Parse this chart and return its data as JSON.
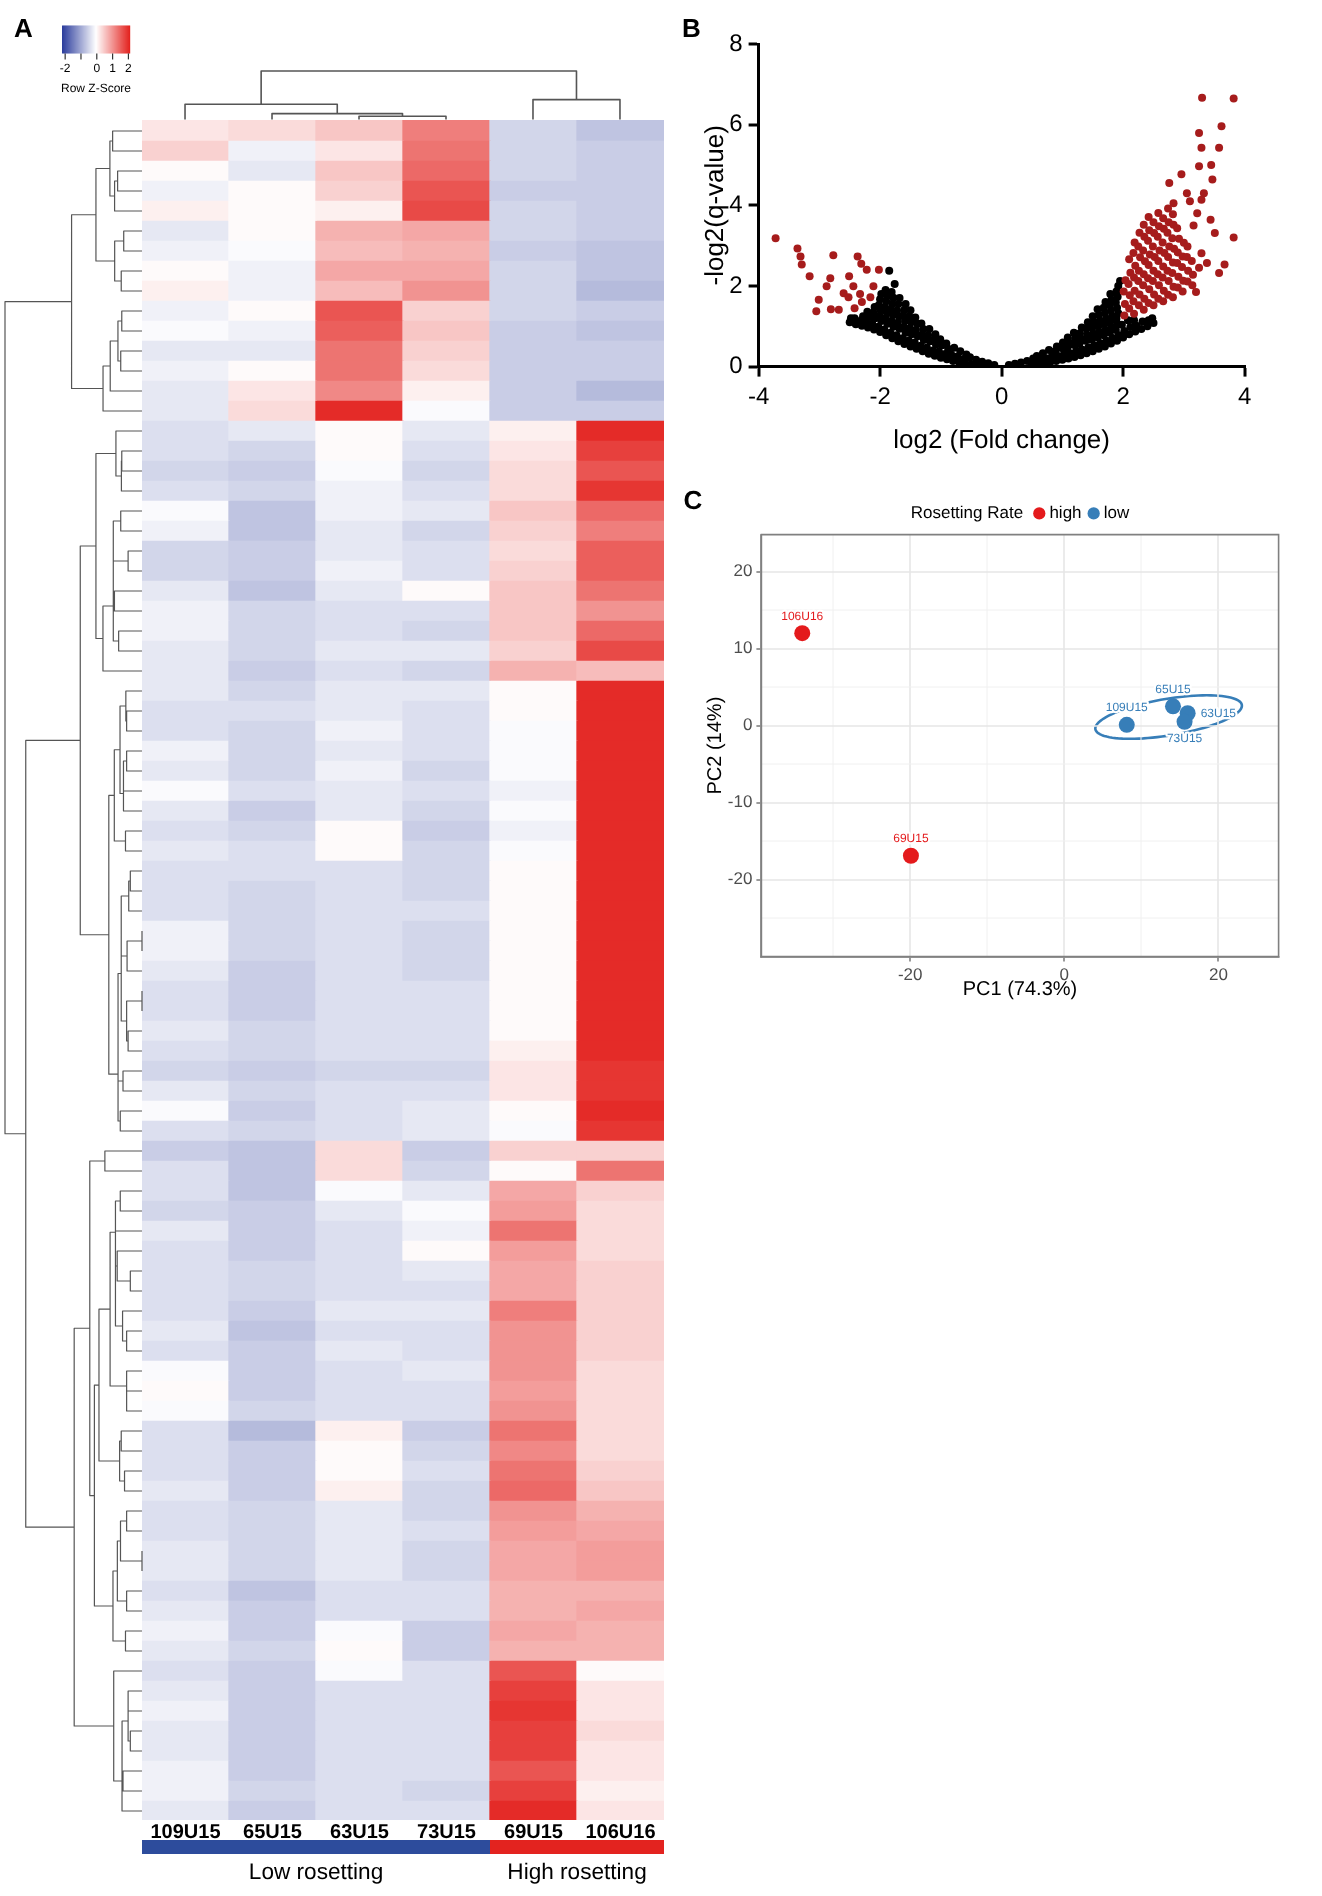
{
  "chart_data": [
    {
      "type": "heatmap",
      "title": "A",
      "categories": [
        "109U15",
        "65U15",
        "63U15",
        "73U15",
        "69U15",
        "106U16"
      ],
      "y_categories": [
        null,
        null,
        null,
        null,
        null,
        null,
        null,
        null,
        null,
        null,
        null,
        null,
        null,
        null,
        null,
        null,
        null,
        null,
        null,
        null,
        null,
        null,
        null,
        null,
        null,
        null,
        null,
        null,
        null,
        null,
        null,
        null,
        null,
        null,
        null,
        null,
        null,
        null,
        null,
        null,
        null,
        null,
        null,
        null,
        null,
        null,
        null,
        null,
        null,
        null,
        null,
        null,
        null,
        null,
        null,
        null,
        null,
        null,
        null,
        null,
        null,
        null,
        null,
        null,
        null,
        null,
        null,
        null,
        null,
        null,
        null,
        null,
        null,
        null,
        null,
        null,
        null,
        null,
        null,
        null,
        null,
        null,
        null,
        null,
        null
      ],
      "cells": [
        [
          0.2,
          0.3,
          0.5,
          1.2,
          -0.5,
          -0.7
        ],
        [
          0.4,
          -0.2,
          0.2,
          1.3,
          -0.5,
          -0.6
        ],
        [
          0.0,
          -0.3,
          0.5,
          1.4,
          -0.5,
          -0.6
        ],
        [
          -0.2,
          0.0,
          0.4,
          1.6,
          -0.6,
          -0.6
        ],
        [
          0.1,
          0.0,
          0.1,
          1.7,
          -0.5,
          -0.6
        ],
        [
          -0.3,
          0.0,
          0.7,
          0.8,
          -0.5,
          -0.6
        ],
        [
          -0.2,
          -0.1,
          0.6,
          0.7,
          -0.6,
          -0.7
        ],
        [
          0.0,
          -0.2,
          0.8,
          0.8,
          -0.5,
          -0.7
        ],
        [
          0.1,
          -0.2,
          0.6,
          1.0,
          -0.5,
          -0.8
        ],
        [
          -0.2,
          0.0,
          1.6,
          0.4,
          -0.5,
          -0.6
        ],
        [
          -0.1,
          -0.2,
          1.5,
          0.5,
          -0.6,
          -0.7
        ],
        [
          -0.3,
          -0.3,
          1.3,
          0.4,
          -0.6,
          -0.6
        ],
        [
          -0.2,
          0.0,
          1.3,
          0.3,
          -0.6,
          -0.6
        ],
        [
          -0.3,
          0.2,
          1.1,
          0.1,
          -0.6,
          -0.8
        ],
        [
          -0.3,
          0.3,
          2.0,
          -0.1,
          -0.6,
          -0.6
        ],
        [
          -0.4,
          -0.3,
          0.0,
          -0.3,
          0.1,
          2.0
        ],
        [
          -0.4,
          -0.5,
          0.0,
          -0.4,
          0.2,
          1.8
        ],
        [
          -0.5,
          -0.6,
          -0.1,
          -0.5,
          0.3,
          1.6
        ],
        [
          -0.4,
          -0.5,
          -0.2,
          -0.4,
          0.3,
          1.9
        ],
        [
          -0.1,
          -0.7,
          -0.2,
          -0.3,
          0.5,
          1.4
        ],
        [
          -0.2,
          -0.7,
          -0.3,
          -0.5,
          0.4,
          1.2
        ],
        [
          -0.5,
          -0.6,
          -0.3,
          -0.4,
          0.3,
          1.5
        ],
        [
          -0.5,
          -0.6,
          -0.2,
          -0.4,
          0.4,
          1.5
        ],
        [
          -0.3,
          -0.7,
          -0.3,
          0.0,
          0.5,
          1.3
        ],
        [
          -0.2,
          -0.5,
          -0.4,
          -0.4,
          0.5,
          1.0
        ],
        [
          -0.2,
          -0.5,
          -0.4,
          -0.5,
          0.5,
          1.4
        ],
        [
          -0.3,
          -0.5,
          -0.3,
          -0.3,
          0.4,
          1.7
        ],
        [
          -0.3,
          -0.6,
          -0.4,
          -0.5,
          0.7,
          0.6
        ],
        [
          -0.3,
          -0.5,
          -0.3,
          -0.3,
          0.0,
          2.0
        ],
        [
          -0.4,
          -0.4,
          -0.3,
          -0.4,
          0.0,
          2.0
        ],
        [
          -0.4,
          -0.5,
          -0.2,
          -0.4,
          -0.1,
          2.0
        ],
        [
          -0.2,
          -0.5,
          -0.3,
          -0.4,
          -0.1,
          2.0
        ],
        [
          -0.3,
          -0.5,
          -0.2,
          -0.5,
          -0.1,
          2.0
        ],
        [
          -0.1,
          -0.4,
          -0.3,
          -0.4,
          -0.2,
          2.0
        ],
        [
          -0.3,
          -0.6,
          -0.3,
          -0.5,
          -0.1,
          2.0
        ],
        [
          -0.4,
          -0.5,
          0.0,
          -0.6,
          -0.2,
          2.0
        ],
        [
          -0.3,
          -0.4,
          0.0,
          -0.5,
          -0.1,
          2.0
        ],
        [
          -0.4,
          -0.4,
          -0.4,
          -0.5,
          0.0,
          2.0
        ],
        [
          -0.4,
          -0.5,
          -0.4,
          -0.5,
          0.0,
          2.0
        ],
        [
          -0.4,
          -0.5,
          -0.4,
          -0.4,
          0.0,
          2.0
        ],
        [
          -0.2,
          -0.5,
          -0.4,
          -0.5,
          0.0,
          2.0
        ],
        [
          -0.2,
          -0.5,
          -0.4,
          -0.5,
          0.0,
          2.0
        ],
        [
          -0.3,
          -0.6,
          -0.4,
          -0.5,
          0.0,
          2.0
        ],
        [
          -0.4,
          -0.6,
          -0.4,
          -0.4,
          0.0,
          2.0
        ],
        [
          -0.4,
          -0.6,
          -0.4,
          -0.4,
          0.0,
          2.0
        ],
        [
          -0.3,
          -0.5,
          -0.4,
          -0.4,
          0.0,
          2.0
        ],
        [
          -0.4,
          -0.5,
          -0.4,
          -0.4,
          0.1,
          2.0
        ],
        [
          -0.5,
          -0.6,
          -0.5,
          -0.5,
          0.2,
          1.9
        ],
        [
          -0.3,
          -0.5,
          -0.4,
          -0.4,
          0.2,
          1.9
        ],
        [
          -0.1,
          -0.6,
          -0.4,
          -0.3,
          0.0,
          2.0
        ],
        [
          -0.4,
          -0.5,
          -0.4,
          -0.3,
          -0.1,
          1.9
        ],
        [
          -0.6,
          -0.7,
          0.3,
          -0.6,
          0.4,
          0.4
        ],
        [
          -0.4,
          -0.7,
          0.3,
          -0.5,
          0.0,
          1.3
        ],
        [
          -0.4,
          -0.7,
          -0.1,
          -0.3,
          0.8,
          0.4
        ],
        [
          -0.5,
          -0.6,
          -0.3,
          -0.1,
          0.9,
          0.3
        ],
        [
          -0.3,
          -0.6,
          -0.4,
          -0.2,
          1.3,
          0.3
        ],
        [
          -0.4,
          -0.6,
          -0.4,
          0.0,
          0.9,
          0.3
        ],
        [
          -0.4,
          -0.5,
          -0.4,
          -0.3,
          0.8,
          0.4
        ],
        [
          -0.4,
          -0.5,
          -0.4,
          -0.4,
          0.8,
          0.4
        ],
        [
          -0.4,
          -0.6,
          -0.3,
          -0.3,
          1.2,
          0.4
        ],
        [
          -0.3,
          -0.7,
          -0.4,
          -0.4,
          1.0,
          0.4
        ],
        [
          -0.4,
          -0.6,
          -0.3,
          -0.4,
          1.0,
          0.4
        ],
        [
          -0.1,
          -0.6,
          -0.4,
          -0.3,
          1.0,
          0.3
        ],
        [
          0.0,
          -0.6,
          -0.4,
          -0.4,
          0.9,
          0.3
        ],
        [
          -0.1,
          -0.5,
          -0.4,
          -0.4,
          1.0,
          0.3
        ],
        [
          -0.4,
          -0.8,
          0.1,
          -0.6,
          1.3,
          0.3
        ],
        [
          -0.4,
          -0.6,
          0.0,
          -0.5,
          1.1,
          0.3
        ],
        [
          -0.4,
          -0.6,
          0.0,
          -0.4,
          1.3,
          0.4
        ],
        [
          -0.3,
          -0.6,
          0.1,
          -0.5,
          1.4,
          0.5
        ],
        [
          -0.4,
          -0.5,
          -0.3,
          -0.5,
          1.0,
          0.7
        ],
        [
          -0.4,
          -0.5,
          -0.3,
          -0.4,
          0.9,
          0.8
        ],
        [
          -0.3,
          -0.5,
          -0.3,
          -0.5,
          0.8,
          0.9
        ],
        [
          -0.3,
          -0.5,
          -0.3,
          -0.5,
          0.8,
          0.9
        ],
        [
          -0.4,
          -0.7,
          -0.4,
          -0.4,
          0.7,
          0.7
        ],
        [
          -0.3,
          -0.6,
          -0.4,
          -0.4,
          0.7,
          0.8
        ],
        [
          -0.2,
          -0.6,
          -0.1,
          -0.6,
          0.8,
          0.7
        ],
        [
          -0.3,
          -0.5,
          0.0,
          -0.6,
          0.7,
          0.7
        ],
        [
          -0.4,
          -0.6,
          -0.1,
          -0.4,
          1.6,
          0.0
        ],
        [
          -0.3,
          -0.6,
          -0.4,
          -0.4,
          1.8,
          0.2
        ],
        [
          -0.2,
          -0.6,
          -0.4,
          -0.4,
          1.9,
          0.2
        ],
        [
          -0.3,
          -0.6,
          -0.4,
          -0.4,
          1.8,
          0.3
        ],
        [
          -0.3,
          -0.6,
          -0.4,
          -0.4,
          1.8,
          0.2
        ],
        [
          -0.2,
          -0.6,
          -0.4,
          -0.4,
          1.6,
          0.2
        ],
        [
          -0.2,
          -0.5,
          -0.4,
          -0.5,
          1.8,
          0.1
        ],
        [
          -0.3,
          -0.6,
          -0.4,
          -0.4,
          2.0,
          0.2
        ]
      ],
      "clim": [
        -2.2,
        2.1
      ],
      "cticks": [
        -2,
        {
          "value": -1,
          "label": null
        },
        0,
        1,
        2
      ],
      "clabel": "Row Z-Score",
      "annotations": [
        "Low rosetting",
        "High rosetting"
      ]
    },
    {
      "type": "scatter",
      "title": "B",
      "xlabel": "log2 (Fold change)",
      "ylabel": "-log2(q-value)",
      "marker": "circle",
      "series": [
        {
          "color": "#000000",
          "x": [
            -0.12,
            -0.22,
            -0.32,
            -0.4,
            -0.42,
            -0.5,
            -0.52,
            -0.6,
            -0.63,
            -0.58,
            -0.7,
            -0.73,
            -0.68,
            -0.8,
            -0.83,
            -0.78,
            -0.9,
            -0.93,
            -0.88,
            -0.91,
            -1,
            -1.03,
            -0.98,
            -1.01,
            -1.1,
            -1.13,
            -1.08,
            -1.11,
            -1.09,
            -1.2,
            -1.23,
            -1.18,
            -1.21,
            -1.19,
            -1.3,
            -1.33,
            -1.28,
            -1.31,
            -1.29,
            -1.32,
            -1.4,
            -1.43,
            -1.38,
            -1.41,
            -1.39,
            -1.42,
            -1.5,
            -1.53,
            -1.48,
            -1.51,
            -1.49,
            -1.52,
            -1.5,
            -1.6,
            -1.63,
            -1.58,
            -1.61,
            -1.59,
            -1.62,
            -1.6,
            -1.58,
            -1.7,
            -1.73,
            -1.68,
            -1.71,
            -1.69,
            -1.72,
            -1.7,
            -1.68,
            -1.8,
            -1.83,
            -1.78,
            -1.81,
            -1.79,
            -1.82,
            -1.8,
            -1.78,
            -1.81,
            -1.9,
            -1.93,
            -1.88,
            -1.91,
            -1.89,
            -1.92,
            -1.9,
            -1.88,
            -1.91,
            -2,
            -2.03,
            -1.98,
            -2.01,
            -1.99,
            -2.02,
            -2,
            -1.98,
            -2.1,
            -2.13,
            -2.08,
            -2.11,
            -2.09,
            -2.2,
            -2.23,
            -2.18,
            -2.21,
            -2.3,
            -2.33,
            -2.28,
            -2.4,
            -2.42,
            -2.5,
            -2.48,
            -1.76,
            -1.85
          ],
          "values": [
            0.04,
            0.08,
            0.12,
            0.04,
            0.17,
            0.06,
            0.23,
            0.08,
            0.19,
            0.3,
            0.11,
            0.25,
            0.38,
            0.14,
            0.3,
            0.47,
            0.18,
            0.31,
            0.44,
            0.57,
            0.22,
            0.37,
            0.53,
            0.68,
            0.27,
            0.4,
            0.54,
            0.67,
            0.8,
            0.32,
            0.47,
            0.63,
            0.78,
            0.93,
            0.38,
            0.52,
            0.66,
            0.79,
            0.93,
            1.07,
            0.44,
            0.6,
            0.75,
            0.91,
            1.06,
            1.22,
            0.5,
            0.65,
            0.8,
            0.95,
            1.1,
            1.25,
            1.4,
            0.56,
            0.7,
            0.84,
            0.98,
            1.13,
            1.27,
            1.41,
            1.55,
            0.63,
            0.78,
            0.94,
            1.09,
            1.24,
            1.39,
            1.55,
            1.7,
            0.7,
            0.84,
            0.99,
            1.13,
            1.28,
            1.42,
            1.56,
            1.71,
            1.85,
            0.78,
            0.92,
            1.06,
            1.2,
            1.34,
            1.48,
            1.62,
            1.76,
            1.9,
            0.86,
            0.99,
            1.13,
            1.26,
            1.4,
            1.53,
            1.67,
            1.8,
            0.92,
            1.06,
            1.2,
            1.34,
            1.48,
            0.97,
            1.1,
            1.23,
            1.36,
            1.01,
            1.13,
            1.25,
            1.05,
            1.2,
            1.1,
            1.2,
            2.05,
            2.38
          ]
        },
        {
          "color": "#000000",
          "x": [
            0.12,
            0.22,
            0.32,
            0.42,
            0.5,
            0.52,
            0.6,
            0.63,
            0.58,
            0.7,
            0.73,
            0.68,
            0.8,
            0.83,
            0.78,
            0.9,
            0.93,
            0.88,
            0.91,
            1,
            1.03,
            0.98,
            1.01,
            1.1,
            1.13,
            1.08,
            1.11,
            1.09,
            1.2,
            1.23,
            1.18,
            1.21,
            1.19,
            1.3,
            1.33,
            1.28,
            1.31,
            1.29,
            1.32,
            1.4,
            1.43,
            1.38,
            1.41,
            1.39,
            1.42,
            1.5,
            1.53,
            1.48,
            1.51,
            1.49,
            1.52,
            1.5,
            1.6,
            1.63,
            1.58,
            1.61,
            1.59,
            1.62,
            1.6,
            1.58,
            1.7,
            1.73,
            1.68,
            1.71,
            1.69,
            1.72,
            1.7,
            1.68,
            1.71,
            1.8,
            1.83,
            1.78,
            1.81,
            1.79,
            1.82,
            1.8,
            1.78,
            1.81,
            1.79,
            1.9,
            1.93,
            1.88,
            1.91,
            1.89,
            1.92,
            1.9,
            1.88,
            1.91,
            1.89,
            1.92,
            2,
            2.02,
            1.98,
            1.95,
            2.1,
            2.12,
            2.08,
            2.2,
            2.22,
            2.18,
            2.3,
            2.32,
            2.4,
            2.42,
            2.5,
            2.48
          ],
          "values": [
            0.04,
            0.07,
            0.1,
            0.14,
            0.05,
            0.2,
            0.07,
            0.17,
            0.26,
            0.09,
            0.21,
            0.33,
            0.11,
            0.26,
            0.41,
            0.14,
            0.26,
            0.38,
            0.5,
            0.17,
            0.31,
            0.46,
            0.6,
            0.2,
            0.33,
            0.46,
            0.59,
            0.72,
            0.24,
            0.39,
            0.54,
            0.69,
            0.84,
            0.28,
            0.42,
            0.56,
            0.69,
            0.83,
            0.97,
            0.33,
            0.48,
            0.64,
            0.79,
            0.95,
            1.1,
            0.38,
            0.53,
            0.67,
            0.82,
            0.96,
            1.11,
            1.25,
            0.44,
            0.58,
            0.72,
            0.86,
            1,
            1.14,
            1.28,
            1.42,
            0.5,
            0.64,
            0.78,
            0.91,
            1.05,
            1.19,
            1.33,
            1.46,
            1.6,
            0.57,
            0.71,
            0.84,
            0.98,
            1.12,
            1.25,
            1.39,
            1.53,
            1.66,
            1.8,
            0.64,
            0.78,
            0.91,
            1.05,
            1.18,
            1.32,
            1.46,
            1.59,
            1.73,
            1.86,
            2,
            0.72,
            0.88,
            1.04,
            2.12,
            0.8,
            0.98,
            1.15,
            0.87,
            1.01,
            1.15,
            0.93,
            1.12,
            1,
            1.15,
            1.08,
            1.2
          ]
        },
        {
          "color": "#a61c1c",
          "x": [
            -3.72,
            -3.36,
            -3.31,
            -3.29,
            -3.16,
            -3.01,
            -3.05,
            -2.77,
            -2.82,
            -2.88,
            -2.81,
            -2.68,
            -2.6,
            -2.51,
            -2.37,
            -2.31,
            -2.44,
            -2.33,
            -2.52,
            -2.22,
            -2.11,
            -2.16,
            -2.3,
            -2.42,
            -2.02,
            3.3,
            3.82,
            3.62,
            3.25,
            3.29,
            3.58,
            3.45,
            3.25,
            2.96,
            2.76,
            3.47,
            3.33,
            3.05,
            3.82,
            3.51,
            3.67,
            3.58,
            3.38,
            3.29,
            3.44,
            3.29,
            2.83,
            3.1,
            3.22,
            3.16,
            3.25,
            3.2
          ],
          "values": [
            3.18,
            2.93,
            2.73,
            2.53,
            2.24,
            1.66,
            1.37,
            2.76,
            2.19,
            1.99,
            1.42,
            1.41,
            1.82,
            2.24,
            2.73,
            2.55,
            1.99,
            1.8,
            1.72,
            2.4,
            1.99,
            1.72,
            1.6,
            1.45,
            2.4,
            6.67,
            6.65,
            5.96,
            5.79,
            5.43,
            5.43,
            5,
            4.97,
            4.77,
            4.55,
            4.64,
            4.3,
            4.3,
            3.2,
            3.31,
            2.53,
            2.32,
            2.57,
            2.81,
            3.64,
            4.14,
            4.05,
            4.1,
            3.8,
            3.5,
            2.45,
            1.85
          ]
        },
        {
          "color": "#a61c1c",
          "x": [
            2.02,
            2.03,
            2.01,
            2.04,
            2.1,
            2.11,
            2.09,
            2.12,
            2.1,
            2.18,
            2.17,
            2.19,
            2.18,
            2.2,
            2.17,
            2.19,
            2.26,
            2.27,
            2.25,
            2.26,
            2.28,
            2.25,
            2.27,
            2.34,
            2.35,
            2.33,
            2.34,
            2.36,
            2.33,
            2.35,
            2.34,
            2.42,
            2.43,
            2.41,
            2.42,
            2.44,
            2.41,
            2.43,
            2.42,
            2.5,
            2.51,
            2.49,
            2.5,
            2.52,
            2.49,
            2.51,
            2.5,
            2.58,
            2.59,
            2.57,
            2.58,
            2.6,
            2.57,
            2.59,
            2.58,
            2.66,
            2.67,
            2.65,
            2.66,
            2.68,
            2.65,
            2.67,
            2.66,
            2.74,
            2.75,
            2.73,
            2.74,
            2.76,
            2.73,
            2.75,
            2.74,
            2.82,
            2.83,
            2.81,
            2.82,
            2.84,
            2.81,
            2.83,
            2.82,
            2.9,
            2.91,
            2.89,
            2.9,
            2.92,
            2.89,
            2.98,
            2.99,
            2.97,
            2.98,
            3,
            3.06,
            3.07,
            3.05,
            3.06,
            3.14,
            3.15,
            3.13
          ],
          "values": [
            1.27,
            1.55,
            1.86,
            2.14,
            1.44,
            1.77,
            2.05,
            2.33,
            2.66,
            1.31,
            1.62,
            1.88,
            2.21,
            2.5,
            2.82,
            3.08,
            1.52,
            1.79,
            2.12,
            2.38,
            2.71,
            2.98,
            3.32,
            1.41,
            1.68,
            2.02,
            2.29,
            2.61,
            2.88,
            3.22,
            3.52,
            1.58,
            1.92,
            2.19,
            2.52,
            2.78,
            3.12,
            3.38,
            3.71,
            1.52,
            1.79,
            2.12,
            2.38,
            2.72,
            2.98,
            3.31,
            3.58,
            1.68,
            2.02,
            2.29,
            2.62,
            2.88,
            3.22,
            3.48,
            3.81,
            1.62,
            1.88,
            2.21,
            2.48,
            2.82,
            3.08,
            3.42,
            3.68,
            1.78,
            2.12,
            2.38,
            2.72,
            2.98,
            3.32,
            3.58,
            3.92,
            1.72,
            1.98,
            2.32,
            2.58,
            2.92,
            3.18,
            3.52,
            3.78,
            1.96,
            2.23,
            2.57,
            2.83,
            3.17,
            3.43,
            1.86,
            2.13,
            2.47,
            2.73,
            3.07,
            2.11,
            2.38,
            2.72,
            2.98,
            2.02,
            2.28,
            2.62
          ]
        }
      ],
      "xlim": [
        -4,
        4
      ],
      "xticks": [
        -4,
        -2,
        0,
        2,
        4
      ],
      "ylim": [
        0,
        8
      ],
      "yticks": [
        0,
        2,
        4,
        6,
        8
      ]
    },
    {
      "type": "scatter",
      "title": "C",
      "legend_title": "Rosetting Rate",
      "xlabel": "PC1 (74.3%)",
      "ylabel": "PC2 (14%)",
      "marker": "circle",
      "legend": "top",
      "grid": true,
      "series": [
        {
          "name": "high",
          "color": "#e41a1c",
          "x": [
            -34,
            -19.9
          ],
          "values": [
            12,
            -16.9
          ]
        },
        {
          "name": "low",
          "color": "#377eb8",
          "x": [
            8.1,
            14.1,
            16,
            15.6
          ],
          "values": [
            0.1,
            2.5,
            1.6,
            0.5
          ]
        }
      ],
      "annotations": [
        {
          "text": "106U16",
          "x": -34,
          "y": 12
        },
        {
          "text": "69U15",
          "x": -19.9,
          "y": -16.9
        },
        {
          "text": "109U15",
          "x": 8.1,
          "y": 0.1
        },
        {
          "text": "65U15",
          "x": 14.1,
          "y": 2.5
        },
        {
          "text": "63U15",
          "x": 16,
          "y": 1.6
        },
        {
          "text": "73U15",
          "x": 15.6,
          "y": 0.5
        }
      ],
      "xlim": [
        -39.3,
        27.8
      ],
      "xticks": [
        {
          "value": -30,
          "label": null
        },
        -20,
        {
          "value": -10,
          "label": null
        },
        0,
        {
          "value": 10,
          "label": null
        },
        20
      ],
      "ylim": [
        -30,
        24.8
      ],
      "yticks": [
        {
          "value": -25,
          "label": null
        },
        -20,
        {
          "value": -15,
          "label": null
        },
        -10,
        {
          "value": -5,
          "label": null
        },
        0,
        {
          "value": 5,
          "label": null
        },
        10,
        {
          "value": 15,
          "label": null
        },
        20
      ]
    }
  ]
}
